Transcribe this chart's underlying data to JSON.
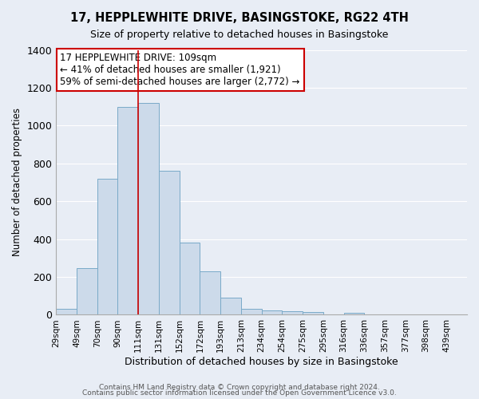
{
  "title": "17, HEPPLEWHITE DRIVE, BASINGSTOKE, RG22 4TH",
  "subtitle": "Size of property relative to detached houses in Basingstoke",
  "xlabel": "Distribution of detached houses by size in Basingstoke",
  "ylabel": "Number of detached properties",
  "bar_color": "#ccdaea",
  "bar_edge_color": "#7aaac8",
  "background_color": "#e8edf5",
  "grid_color": "#ffffff",
  "bin_labels": [
    "29sqm",
    "49sqm",
    "70sqm",
    "90sqm",
    "111sqm",
    "131sqm",
    "152sqm",
    "172sqm",
    "193sqm",
    "213sqm",
    "234sqm",
    "254sqm",
    "275sqm",
    "295sqm",
    "316sqm",
    "336sqm",
    "357sqm",
    "377sqm",
    "398sqm",
    "439sqm"
  ],
  "bar_values": [
    30,
    245,
    720,
    1100,
    1120,
    760,
    380,
    230,
    90,
    30,
    22,
    20,
    15,
    0,
    12,
    0,
    0,
    0,
    0,
    0
  ],
  "ylim": [
    0,
    1400
  ],
  "yticks": [
    0,
    200,
    400,
    600,
    800,
    1000,
    1200,
    1400
  ],
  "vline_x_bin": 4,
  "bin_edges": [
    0,
    1,
    2,
    3,
    4,
    5,
    6,
    7,
    8,
    9,
    10,
    11,
    12,
    13,
    14,
    15,
    16,
    17,
    18,
    19,
    20
  ],
  "annotation_title": "17 HEPPLEWHITE DRIVE: 109sqm",
  "annotation_line1": "← 41% of detached houses are smaller (1,921)",
  "annotation_line2": "59% of semi-detached houses are larger (2,772) →",
  "annotation_box_color": "#ffffff",
  "annotation_box_edge": "#cc0000",
  "footer1": "Contains HM Land Registry data © Crown copyright and database right 2024.",
  "footer2": "Contains public sector information licensed under the Open Government Licence v3.0."
}
